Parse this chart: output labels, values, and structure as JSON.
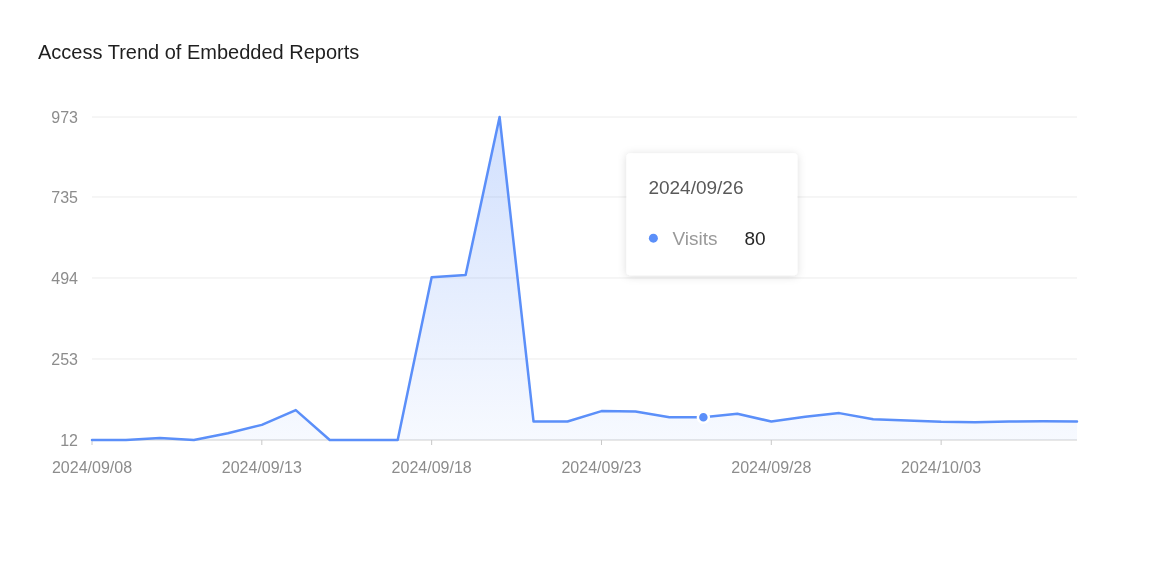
{
  "chart_data": {
    "type": "area",
    "title": "Access Trend of Embedded Reports",
    "x": [
      "2024-09-08",
      "2024-09-09",
      "2024-09-10",
      "2024-09-11",
      "2024-09-12",
      "2024-09-13",
      "2024-09-14",
      "2024-09-15",
      "2024-09-16",
      "2024-09-17",
      "2024-09-18",
      "2024-09-19",
      "2024-09-20",
      "2024-09-21",
      "2024-09-22",
      "2024-09-23",
      "2024-09-24",
      "2024-09-25",
      "2024-09-26",
      "2024-09-27",
      "2024-09-28",
      "2024-09-29",
      "2024-09-30",
      "2024-10-01",
      "2024-10-02",
      "2024-10-03",
      "2024-10-04",
      "2024-10-05",
      "2024-10-06",
      "2024-10-07"
    ],
    "series": [
      {
        "name": "Visits",
        "color": "#5b8ff9",
        "values": [
          12,
          12,
          18,
          12,
          32,
          57,
          101,
          12,
          12,
          12,
          496,
          503,
          973,
          67,
          67,
          98,
          97,
          80,
          80,
          90,
          67,
          81,
          92,
          74,
          70,
          66,
          65,
          67,
          68,
          67
        ]
      },
      {
        "type": "scatter",
        "x": [
          "2024-09-26"
        ],
        "values": [
          80
        ],
        "color": "#5b8ff9",
        "marker": "circle"
      }
    ],
    "xlim": [
      "2024-09-08",
      "2024-10-07"
    ],
    "xticks": [
      {
        "value": "2024-09-08",
        "label": "2024/09/08"
      },
      {
        "value": "2024-09-13",
        "label": "2024/09/13"
      },
      {
        "value": "2024-09-18",
        "label": "2024/09/18"
      },
      {
        "value": "2024-09-23",
        "label": "2024/09/23"
      },
      {
        "value": "2024-09-28",
        "label": "2024/09/28"
      },
      {
        "value": "2024-10-03",
        "label": "2024/10/03"
      }
    ],
    "ylim": [
      12,
      973
    ],
    "yticks": [
      12,
      253,
      494,
      735,
      973
    ],
    "grid": "y",
    "line_style": "solid",
    "annotations": [
      "2024/09/26",
      "80"
    ]
  }
}
